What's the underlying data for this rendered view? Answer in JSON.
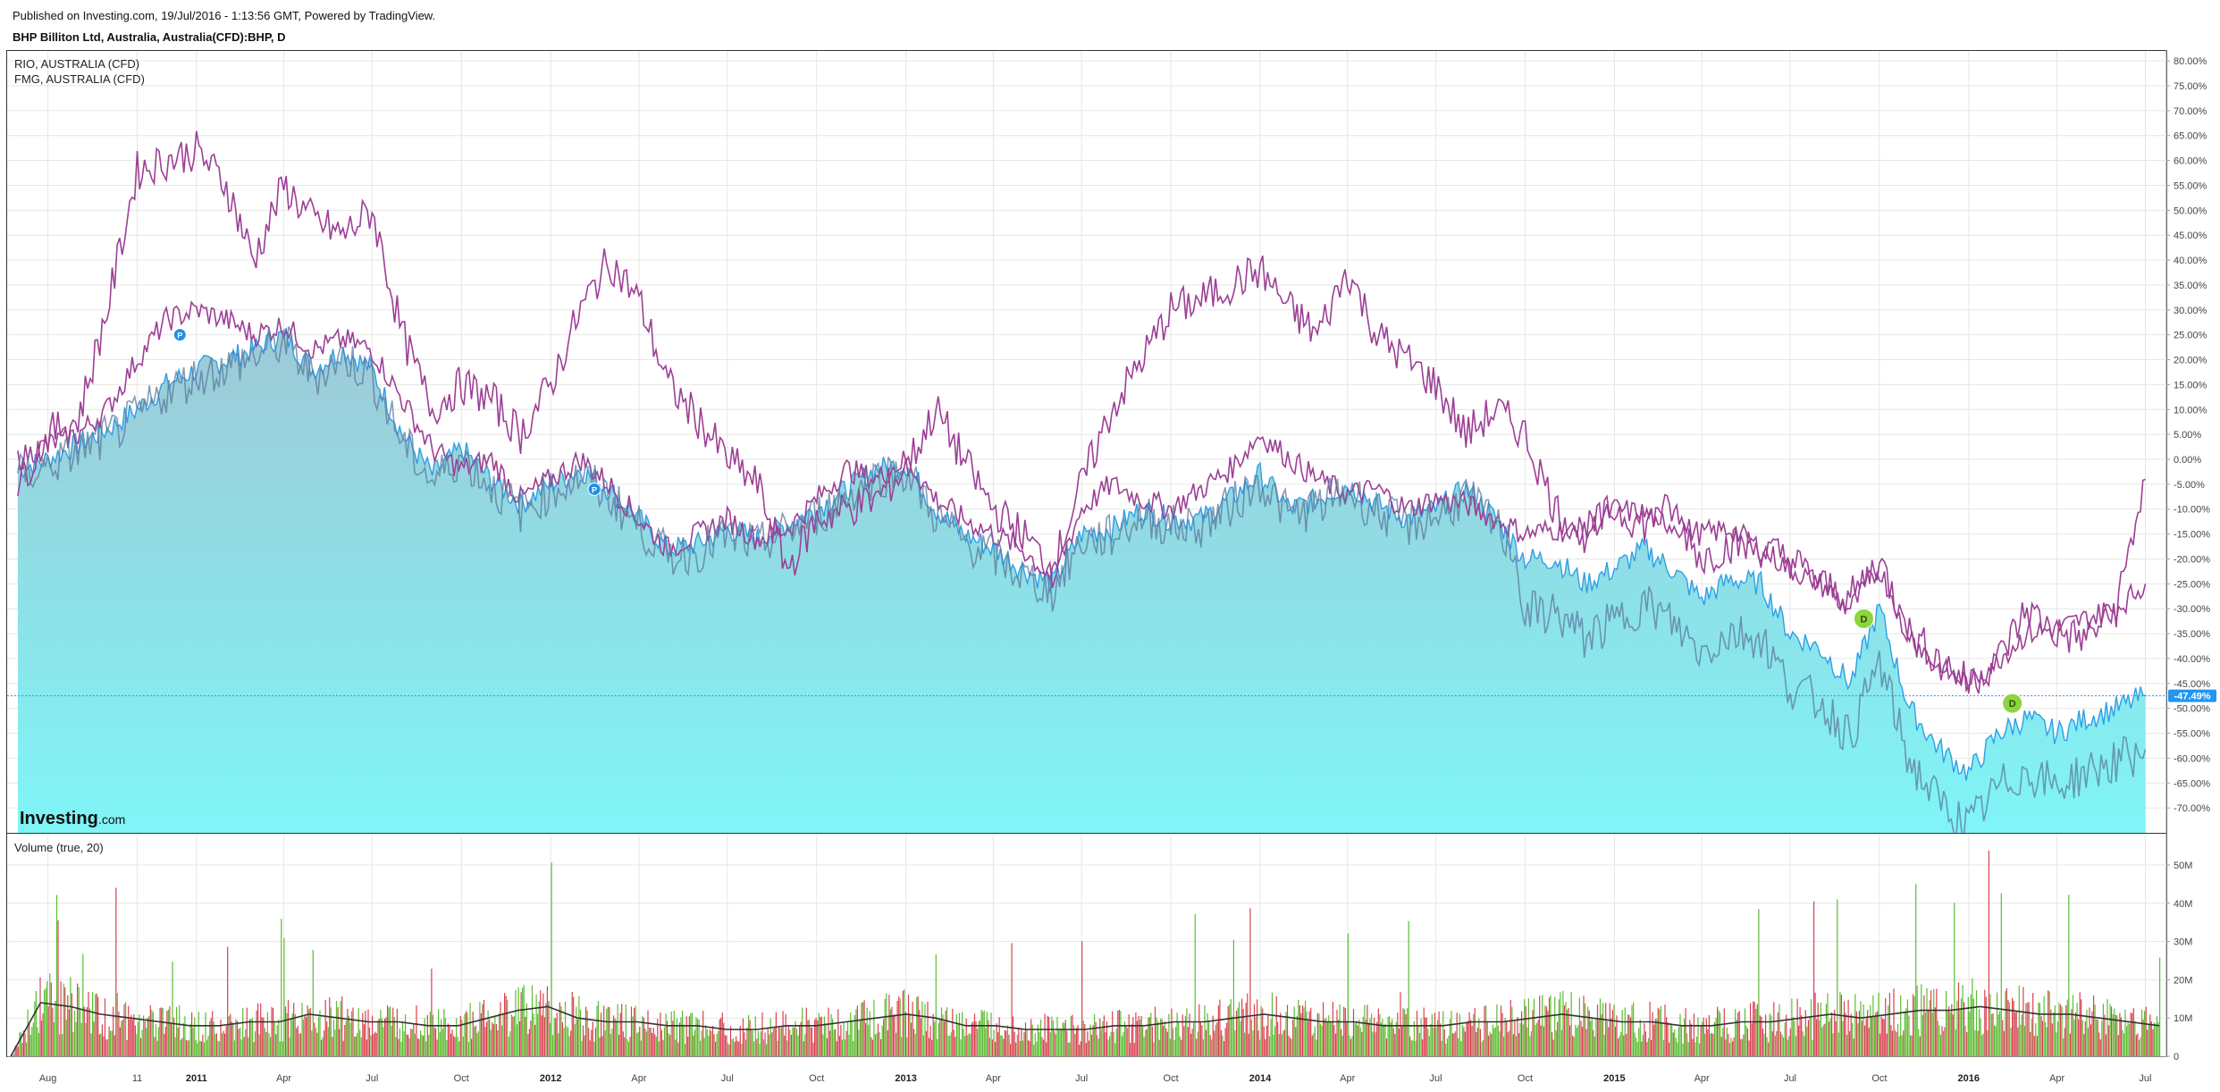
{
  "header": {
    "published": "Published on Investing.com, 19/Jul/2016 - 1:13:56 GMT, Powered by TradingView.",
    "symbol": "BHP Billiton Ltd, Australia, Australia(CFD):BHP, D"
  },
  "branding": {
    "logo_main": "Investing",
    "logo_suffix": ".com"
  },
  "colors": {
    "area_fill_top": "#9ec9d6",
    "area_fill_bottom": "#7ff5f7",
    "area_line": "#2f9fe6",
    "compare_line": "#9c3f95",
    "fmg_line": "#5c7a9e",
    "grid": "#e6e6e6",
    "volume_up": "#5cbd33",
    "volume_down": "#d84250",
    "volume_ma": "#333333",
    "badge_blue": "#1e90e6",
    "badge_green": "#8dd43f",
    "last_price_bg": "#2196f3"
  },
  "chart_data": [
    {
      "type": "area",
      "series_labels": [
        "RIO, AUSTRALIA (CFD)",
        "FMG, AUSTRALIA (CFD)"
      ],
      "y_unit": "%",
      "ylim": [
        -75,
        82
      ],
      "y_ticks": [
        "80.00%",
        "75.00%",
        "70.00%",
        "65.00%",
        "60.00%",
        "55.00%",
        "50.00%",
        "45.00%",
        "40.00%",
        "35.00%",
        "30.00%",
        "25.00%",
        "20.00%",
        "15.00%",
        "10.00%",
        "5.00%",
        "0.00%",
        "-5.00%",
        "-10.00%",
        "-15.00%",
        "-20.00%",
        "-25.00%",
        "-30.00%",
        "-35.00%",
        "-40.00%",
        "-45.00%",
        "-50.00%",
        "-55.00%",
        "-60.00%",
        "-65.00%",
        "-70.00%"
      ],
      "last_value_label": "-47.49%",
      "x_labels": [
        "Aug",
        "11",
        "2011",
        "Apr",
        "Jul",
        "Oct",
        "2012",
        "Apr",
        "Jul",
        "Oct",
        "2013",
        "Apr",
        "Jul",
        "Oct",
        "2014",
        "Apr",
        "Jul",
        "Oct",
        "2015",
        "Apr",
        "Jul",
        "Oct",
        "2016",
        "Apr",
        "Jul"
      ],
      "markers": [
        {
          "label": "P",
          "date": "2010-12",
          "value": 25
        },
        {
          "label": "P",
          "date": "2012-02",
          "value": -6
        },
        {
          "label": "D",
          "date": "2015-09",
          "value": -32
        },
        {
          "label": "D",
          "date": "2016-02",
          "value": -49
        }
      ],
      "series": [
        {
          "key": "bhp",
          "x": [
            "2010-07-01",
            "2010-08-01",
            "2010-09-01",
            "2010-10-01",
            "2010-11-01",
            "2010-12-01",
            "2011-01-01",
            "2011-02-01",
            "2011-03-01",
            "2011-04-01",
            "2011-05-01",
            "2011-06-01",
            "2011-07-01",
            "2011-08-01",
            "2011-09-01",
            "2011-10-01",
            "2011-11-01",
            "2011-12-01",
            "2012-01-01",
            "2012-02-01",
            "2012-03-01",
            "2012-04-01",
            "2012-05-01",
            "2012-06-01",
            "2012-07-01",
            "2012-08-01",
            "2012-09-01",
            "2012-10-01",
            "2012-11-01",
            "2012-12-01",
            "2013-01-01",
            "2013-02-01",
            "2013-03-01",
            "2013-04-01",
            "2013-05-01",
            "2013-06-01",
            "2013-07-01",
            "2013-08-01",
            "2013-09-01",
            "2013-10-01",
            "2013-11-01",
            "2013-12-01",
            "2014-01-01",
            "2014-02-01",
            "2014-03-01",
            "2014-04-01",
            "2014-05-01",
            "2014-06-01",
            "2014-07-01",
            "2014-08-01",
            "2014-09-01",
            "2014-10-01",
            "2014-11-01",
            "2014-12-01",
            "2015-01-01",
            "2015-02-01",
            "2015-03-01",
            "2015-04-01",
            "2015-05-01",
            "2015-06-01",
            "2015-07-01",
            "2015-08-01",
            "2015-09-01",
            "2015-10-01",
            "2015-11-01",
            "2015-12-01",
            "2016-01-01",
            "2016-02-01",
            "2016-03-01",
            "2016-04-01",
            "2016-05-01",
            "2016-06-01",
            "2016-07-01"
          ],
          "values": [
            -2,
            0,
            3,
            6,
            10,
            15,
            18,
            20,
            22,
            25,
            18,
            22,
            18,
            5,
            -3,
            2,
            -4,
            -9,
            -5,
            -2,
            -6,
            -12,
            -18,
            -17,
            -14,
            -16,
            -13,
            -10,
            -6,
            -2,
            -1,
            -10,
            -15,
            -18,
            -22,
            -25,
            -15,
            -14,
            -10,
            -12,
            -12,
            -8,
            -3,
            -10,
            -8,
            -5,
            -9,
            -12,
            -10,
            -6,
            -12,
            -20,
            -20,
            -25,
            -22,
            -18,
            -22,
            -28,
            -24,
            -25,
            -35,
            -38,
            -45,
            -30,
            -50,
            -58,
            -63,
            -55,
            -52,
            -55,
            -52,
            -50,
            -47.49
          ]
        },
        {
          "key": "rio",
          "x": [
            "2010-07-01",
            "2010-08-01",
            "2010-09-01",
            "2010-10-01",
            "2010-11-01",
            "2010-12-01",
            "2011-01-01",
            "2011-02-01",
            "2011-03-01",
            "2011-04-01",
            "2011-05-01",
            "2011-06-01",
            "2011-07-01",
            "2011-08-01",
            "2011-09-01",
            "2011-10-01",
            "2011-11-01",
            "2011-12-01",
            "2012-01-01",
            "2012-02-01",
            "2012-03-01",
            "2012-04-01",
            "2012-05-01",
            "2012-06-01",
            "2012-07-01",
            "2012-08-01",
            "2012-09-01",
            "2012-10-01",
            "2012-11-01",
            "2012-12-01",
            "2013-01-01",
            "2013-02-01",
            "2013-03-01",
            "2013-04-01",
            "2013-05-01",
            "2013-06-01",
            "2013-07-01",
            "2013-08-01",
            "2013-09-01",
            "2013-10-01",
            "2013-11-01",
            "2013-12-01",
            "2014-01-01",
            "2014-02-01",
            "2014-03-01",
            "2014-04-01",
            "2014-05-01",
            "2014-06-01",
            "2014-07-01",
            "2014-08-01",
            "2014-09-01",
            "2014-10-01",
            "2014-11-01",
            "2014-12-01",
            "2015-01-01",
            "2015-02-01",
            "2015-03-01",
            "2015-04-01",
            "2015-05-01",
            "2015-06-01",
            "2015-07-01",
            "2015-08-01",
            "2015-09-01",
            "2015-10-01",
            "2015-11-01",
            "2015-12-01",
            "2016-01-01",
            "2016-02-01",
            "2016-03-01",
            "2016-04-01",
            "2016-05-01",
            "2016-06-01",
            "2016-07-01"
          ],
          "values": [
            0,
            3,
            5,
            10,
            20,
            28,
            30,
            28,
            25,
            27,
            22,
            24,
            22,
            12,
            2,
            -2,
            0,
            -8,
            -4,
            0,
            -5,
            -12,
            -18,
            -15,
            -12,
            -16,
            -14,
            -8,
            -2,
            -4,
            0,
            -8,
            -12,
            -15,
            -18,
            -24,
            -10,
            -5,
            -8,
            -10,
            -6,
            -2,
            5,
            0,
            -4,
            -7,
            -6,
            -10,
            -8,
            -9,
            -12,
            -15,
            -14,
            -15,
            -10,
            -11,
            -13,
            -15,
            -14,
            -18,
            -22,
            -25,
            -30,
            -22,
            -35,
            -42,
            -45,
            -40,
            -35,
            -34,
            -32,
            -30,
            -25
          ]
        },
        {
          "key": "fmg",
          "x": [
            "2010-07-01",
            "2010-08-01",
            "2010-09-01",
            "2010-10-01",
            "2010-11-01",
            "2010-12-01",
            "2011-01-01",
            "2011-02-01",
            "2011-03-01",
            "2011-04-01",
            "2011-05-01",
            "2011-06-01",
            "2011-07-01",
            "2011-08-01",
            "2011-09-01",
            "2011-10-01",
            "2011-11-01",
            "2011-12-01",
            "2012-01-01",
            "2012-02-01",
            "2012-03-01",
            "2012-04-01",
            "2012-05-01",
            "2012-06-01",
            "2012-07-01",
            "2012-08-01",
            "2012-09-01",
            "2012-10-01",
            "2012-11-01",
            "2012-12-01",
            "2013-01-01",
            "2013-02-01",
            "2013-03-01",
            "2013-04-01",
            "2013-05-01",
            "2013-06-01",
            "2013-07-01",
            "2013-08-01",
            "2013-09-01",
            "2013-10-01",
            "2013-11-01",
            "2013-12-01",
            "2014-01-01",
            "2014-02-01",
            "2014-03-01",
            "2014-04-01",
            "2014-05-01",
            "2014-06-01",
            "2014-07-01",
            "2014-08-01",
            "2014-09-01",
            "2014-10-01",
            "2014-11-01",
            "2014-12-01",
            "2015-01-01",
            "2015-02-01",
            "2015-03-01",
            "2015-04-01",
            "2015-05-01",
            "2015-06-01",
            "2015-07-01",
            "2015-08-01",
            "2015-09-01",
            "2015-10-01",
            "2015-11-01",
            "2015-12-01",
            "2016-01-01",
            "2016-02-01",
            "2016-03-01",
            "2016-04-01",
            "2016-05-01",
            "2016-06-01",
            "2016-07-01"
          ],
          "values": [
            -5,
            5,
            8,
            30,
            58,
            60,
            62,
            55,
            40,
            55,
            48,
            45,
            50,
            25,
            10,
            15,
            12,
            5,
            15,
            30,
            40,
            32,
            15,
            8,
            0,
            -5,
            -22,
            -12,
            -10,
            -8,
            -2,
            10,
            0,
            -10,
            -15,
            -22,
            -5,
            10,
            20,
            30,
            32,
            35,
            38,
            30,
            25,
            38,
            25,
            20,
            15,
            5,
            10,
            5,
            -10,
            -15,
            -10,
            -13,
            -10,
            -20,
            -17,
            -18,
            -20,
            -25,
            -28,
            -20,
            -35,
            -40,
            -45,
            -40,
            -30,
            -35,
            -36,
            -30,
            -4
          ]
        }
      ]
    },
    {
      "type": "bar",
      "title": "Volume (true, 20)",
      "ylim": [
        0,
        57
      ],
      "y_unit": "M",
      "y_ticks": [
        "50M",
        "40M",
        "30M",
        "20M",
        "10M",
        "0"
      ],
      "notes": "Daily volume bars (green up / red down) with a 20-period moving average line",
      "ma_values": [
        0,
        14,
        13,
        11,
        10,
        9,
        8,
        8,
        9,
        9,
        11,
        10,
        9,
        9,
        8,
        8,
        10,
        12,
        13,
        10,
        9,
        9,
        8,
        8,
        7,
        7,
        8,
        8,
        9,
        10,
        11,
        10,
        8,
        8,
        7,
        7,
        7,
        8,
        8,
        9,
        9,
        10,
        11,
        10,
        9,
        9,
        8,
        8,
        8,
        9,
        9,
        10,
        11,
        10,
        9,
        9,
        8,
        8,
        9,
        9,
        10,
        11,
        10,
        11,
        12,
        12,
        13,
        12,
        11,
        11,
        10,
        9,
        8
      ]
    }
  ]
}
